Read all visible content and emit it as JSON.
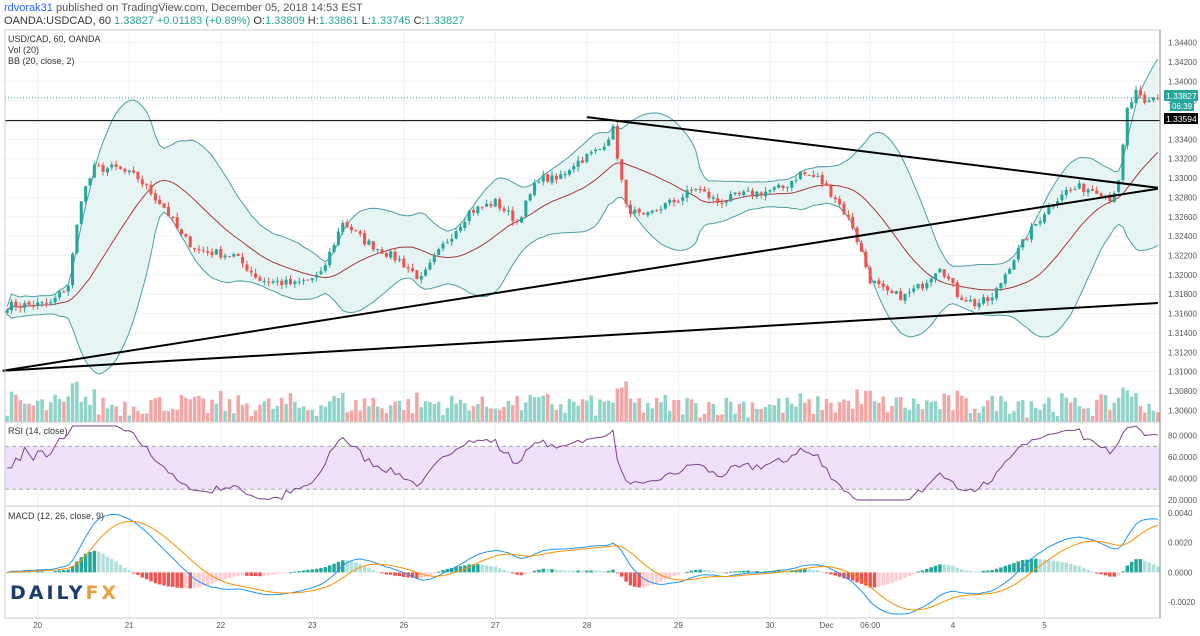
{
  "header": {
    "user": "rdvorak31",
    "published_text": "published on TradingView.com, December 05, 2018 14:53 EST",
    "symbol": "OANDA:USDCAD, 60",
    "last": "1.33827",
    "change": "+0.01183 (+0.89%)",
    "o_label": "O:",
    "o_value": "1.33809",
    "h_label": "H:",
    "h_value": "1.33861",
    "l_label": "L:",
    "l_value": "1.33745",
    "c_label": "C:",
    "c_value": "1.33827"
  },
  "pane_labels": {
    "symbol": "USD/CAD, 60, OANDA",
    "volume": "Vol (20)",
    "bb": "BB (20, close, 2)",
    "rsi": "RSI (14, close)",
    "macd": "MACD (12, 26, close, 9)"
  },
  "price_badges": {
    "last": "1.33827",
    "countdown": "06:39",
    "level": "1.33594"
  },
  "logo": {
    "main": "DAILY",
    "accent": "FX"
  },
  "colors": {
    "up": "#26a69a",
    "down": "#ef5350",
    "volume_up": "#8fd3c9",
    "volume_down": "#f4a6a4",
    "bb_band": "#4e9ca6",
    "bb_fill": "#e6f5f3",
    "bb_basis": "#a33a3a",
    "rsi_line": "#7b3f8f",
    "rsi_fill": "#f0e1fb",
    "macd_line": "#2196f3",
    "signal_line": "#ff8f00",
    "trendline": "#000000",
    "last_price_line": "#26a69a"
  },
  "chart_data": {
    "type": "candlestick",
    "price_axis": {
      "ticks": [
        "1.34400",
        "1.34200",
        "1.34000",
        "1.33800",
        "1.33600",
        "1.33400",
        "1.33200",
        "1.33000",
        "1.32800",
        "1.32600",
        "1.32400",
        "1.32200",
        "1.32000",
        "1.31800",
        "1.31600",
        "1.31400",
        "1.31200",
        "1.31000",
        "1.30800",
        "1.30600"
      ],
      "range": [
        1.3048,
        1.3453
      ]
    },
    "rsi_axis": {
      "ticks": [
        "80.0000",
        "60.0000",
        "40.0000",
        "20.0000"
      ],
      "range": [
        20,
        89
      ],
      "bands": [
        30,
        70
      ]
    },
    "macd_axis": {
      "ticks": [
        "0.0040",
        "0.0020",
        "0.0000",
        "-0.0020"
      ],
      "range": [
        -0.0028,
        0.0042
      ]
    },
    "time_axis": [
      {
        "label": "20",
        "index": 7
      },
      {
        "label": "21",
        "index": 28
      },
      {
        "label": "22",
        "index": 49
      },
      {
        "label": "23",
        "index": 70
      },
      {
        "label": "26",
        "index": 91
      },
      {
        "label": "27",
        "index": 112
      },
      {
        "label": "28",
        "index": 133
      },
      {
        "label": "29",
        "index": 154
      },
      {
        "label": "30",
        "index": 175
      },
      {
        "label": "Dec",
        "index": 188
      },
      {
        "label": "06:00",
        "index": 198
      },
      {
        "label": "4",
        "index": 217
      },
      {
        "label": "5",
        "index": 238
      }
    ],
    "trendlines": [
      {
        "name": "falling resistance",
        "from": [
          -1,
          1.3101
        ],
        "to": [
          264,
          1.3289
        ]
      },
      {
        "name": "rising support",
        "from": [
          133,
          1.3363
        ],
        "to": [
          264,
          1.329
        ]
      },
      {
        "name": "support",
        "from": [
          -1,
          1.3101
        ],
        "to": [
          264,
          1.3171
        ]
      }
    ],
    "level_line": 1.33594,
    "last_price": 1.33827,
    "close_anchors": [
      [
        0,
        1.3168
      ],
      [
        10,
        1.317
      ],
      [
        14,
        1.319
      ],
      [
        17,
        1.328
      ],
      [
        20,
        1.331
      ],
      [
        25,
        1.331
      ],
      [
        30,
        1.33
      ],
      [
        36,
        1.327
      ],
      [
        40,
        1.324
      ],
      [
        44,
        1.3225
      ],
      [
        52,
        1.322
      ],
      [
        58,
        1.3195
      ],
      [
        66,
        1.319
      ],
      [
        72,
        1.32
      ],
      [
        77,
        1.3255
      ],
      [
        82,
        1.3235
      ],
      [
        90,
        1.3215
      ],
      [
        95,
        1.3195
      ],
      [
        100,
        1.323
      ],
      [
        106,
        1.3265
      ],
      [
        112,
        1.3275
      ],
      [
        117,
        1.3255
      ],
      [
        122,
        1.33
      ],
      [
        126,
        1.3298
      ],
      [
        130,
        1.3315
      ],
      [
        136,
        1.333
      ],
      [
        139,
        1.335
      ],
      [
        142,
        1.327
      ],
      [
        146,
        1.3258
      ],
      [
        150,
        1.327
      ],
      [
        154,
        1.3278
      ],
      [
        158,
        1.329
      ],
      [
        163,
        1.3275
      ],
      [
        168,
        1.3282
      ],
      [
        174,
        1.3286
      ],
      [
        178,
        1.329
      ],
      [
        182,
        1.3305
      ],
      [
        186,
        1.33
      ],
      [
        190,
        1.328
      ],
      [
        194,
        1.325
      ],
      [
        198,
        1.3195
      ],
      [
        202,
        1.318
      ],
      [
        206,
        1.3178
      ],
      [
        210,
        1.319
      ],
      [
        214,
        1.321
      ],
      [
        218,
        1.318
      ],
      [
        222,
        1.317
      ],
      [
        226,
        1.3175
      ],
      [
        230,
        1.321
      ],
      [
        234,
        1.324
      ],
      [
        238,
        1.3265
      ],
      [
        242,
        1.3285
      ],
      [
        246,
        1.329
      ],
      [
        250,
        1.3288
      ],
      [
        253,
        1.328
      ],
      [
        255,
        1.3294
      ],
      [
        257,
        1.337
      ],
      [
        259,
        1.3388
      ],
      [
        261,
        1.3375
      ],
      [
        263,
        1.33827
      ]
    ]
  }
}
